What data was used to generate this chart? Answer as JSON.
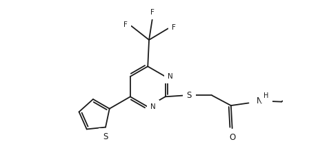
{
  "bg": "#ffffff",
  "lc": "#1a1a1a",
  "lw": 1.3,
  "fs": 7.5,
  "xlim": [
    0,
    448
  ],
  "ylim": [
    0,
    222
  ]
}
